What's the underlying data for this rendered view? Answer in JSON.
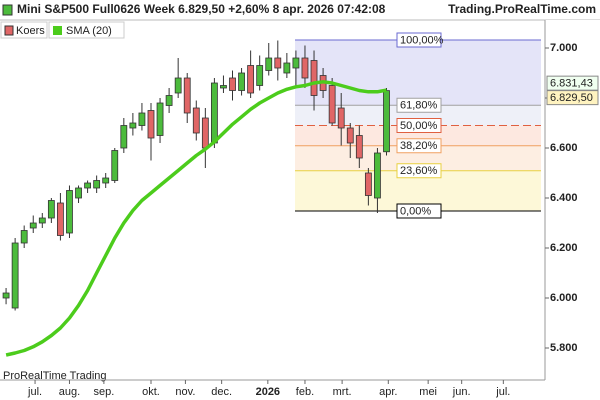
{
  "chart_data": {
    "type": "candlestick",
    "title": "Mini S&P500 Full0626 Week 6.829,50 +2,60% 8 apr. 2026 07:42:08",
    "source": "Trading.ProRealTime.com",
    "watermark": "ProRealTime Trading",
    "series": [
      {
        "name": "Koers",
        "up_color": "#4cbb3c",
        "down_color": "#e06666",
        "open": [
          6000,
          5960,
          6220,
          6280,
          6300,
          6320,
          6380,
          6260,
          6400,
          6440,
          6440,
          6460,
          6470,
          6600,
          6680,
          6690,
          6750,
          6650,
          6770,
          6820,
          6880,
          6760,
          6720,
          6620,
          6840,
          6880,
          6830,
          6930,
          6850,
          6910,
          6960,
          6900,
          6920,
          6960,
          6950,
          6890,
          6850,
          6760,
          6680,
          6650,
          6500,
          6400,
          6585
        ],
        "high": [
          6040,
          6240,
          6290,
          6330,
          6340,
          6400,
          6420,
          6450,
          6450,
          6470,
          6490,
          6500,
          6600,
          6720,
          6740,
          6780,
          6780,
          6800,
          6840,
          6960,
          6900,
          6790,
          6760,
          6880,
          6890,
          6910,
          6920,
          6990,
          6970,
          7020,
          7030,
          6980,
          6990,
          7010,
          6990,
          6920,
          6880,
          6820,
          6700,
          6690,
          6520,
          6600,
          6840
        ],
        "low": [
          5975,
          5950,
          6200,
          6260,
          6280,
          6300,
          6230,
          6240,
          6380,
          6420,
          6420,
          6440,
          6460,
          6580,
          6650,
          6670,
          6550,
          6620,
          6740,
          6800,
          6700,
          6630,
          6520,
          6600,
          6820,
          6790,
          6810,
          6800,
          6830,
          6890,
          6870,
          6880,
          6850,
          6840,
          6750,
          6800,
          6690,
          6610,
          6560,
          6520,
          6370,
          6340,
          6570
        ],
        "close": [
          6020,
          6220,
          6270,
          6300,
          6320,
          6390,
          6250,
          6430,
          6440,
          6460,
          6470,
          6480,
          6590,
          6690,
          6700,
          6740,
          6640,
          6780,
          6810,
          6880,
          6740,
          6660,
          6600,
          6860,
          6850,
          6830,
          6900,
          6820,
          6930,
          6960,
          6920,
          6940,
          6960,
          6880,
          6810,
          6830,
          6700,
          6680,
          6620,
          6560,
          6410,
          6580,
          6829.5
        ]
      },
      {
        "name": "SMA (20)",
        "color": "#4ccc1c",
        "values": [
          5772,
          5780,
          5790,
          5805,
          5825,
          5850,
          5880,
          5920,
          5970,
          6030,
          6100,
          6170,
          6240,
          6300,
          6350,
          6390,
          6420,
          6450,
          6480,
          6510,
          6540,
          6570,
          6595,
          6625,
          6660,
          6695,
          6725,
          6755,
          6780,
          6800,
          6820,
          6835,
          6845,
          6850,
          6860,
          6865,
          6860,
          6850,
          6840,
          6830,
          6825,
          6825,
          6831.43
        ]
      }
    ],
    "last_sma": {
      "value": 6831.43,
      "label": "6.831,43"
    },
    "last_price": {
      "value": 6829.5,
      "label": "6.829,50"
    },
    "xlim": [
      -0.67,
      59.5
    ],
    "xticks": [
      {
        "value": 3.2,
        "label": "jul."
      },
      {
        "value": 7.0,
        "label": "aug."
      },
      {
        "value": 10.8,
        "label": "sep."
      },
      {
        "value": 16.0,
        "label": "okt."
      },
      {
        "value": 19.8,
        "label": "nov."
      },
      {
        "value": 23.8,
        "label": "dec."
      },
      {
        "value": 28.9,
        "label": "2026"
      },
      {
        "value": 33.0,
        "label": "feb."
      },
      {
        "value": 37.1,
        "label": "mrt."
      },
      {
        "value": 42.2,
        "label": "apr."
      },
      {
        "value": 46.6,
        "label": "mei"
      },
      {
        "value": 50.3,
        "label": "jun."
      },
      {
        "value": 54.9,
        "label": "jul."
      }
    ],
    "ylim": [
      5672,
      7112
    ],
    "yticks": [
      {
        "value": 5800,
        "label": "5.800"
      },
      {
        "value": 6000,
        "label": "6.000"
      },
      {
        "value": 6200,
        "label": "6.200"
      },
      {
        "value": 6400,
        "label": "6.400"
      },
      {
        "value": 6600,
        "label": "6.600"
      },
      {
        "value": 6800,
        "label": "6.800"
      },
      {
        "value": 7000,
        "label": "7.000"
      }
    ],
    "fibonacci": [
      {
        "value": 7032,
        "label": "100,00%",
        "color": "#6a6ad0",
        "fill": "#e4e4f8"
      },
      {
        "value": 6771,
        "label": "61,80%",
        "color": "#a0a0a0",
        "fill": "#eef0f8"
      },
      {
        "value": 6690,
        "label": "50,00%",
        "color": "#e06040",
        "fill": "#fde8e0"
      },
      {
        "value": 6609,
        "label": "38,20%",
        "color": "#f0a060",
        "fill": "#fdeee2"
      },
      {
        "value": 6509,
        "label": "23,60%",
        "color": "#e8d040",
        "fill": "#fdf8d8"
      },
      {
        "value": 6348,
        "label": "0,00%",
        "color": "#000000",
        "fill": "#fdf8d8"
      }
    ]
  }
}
